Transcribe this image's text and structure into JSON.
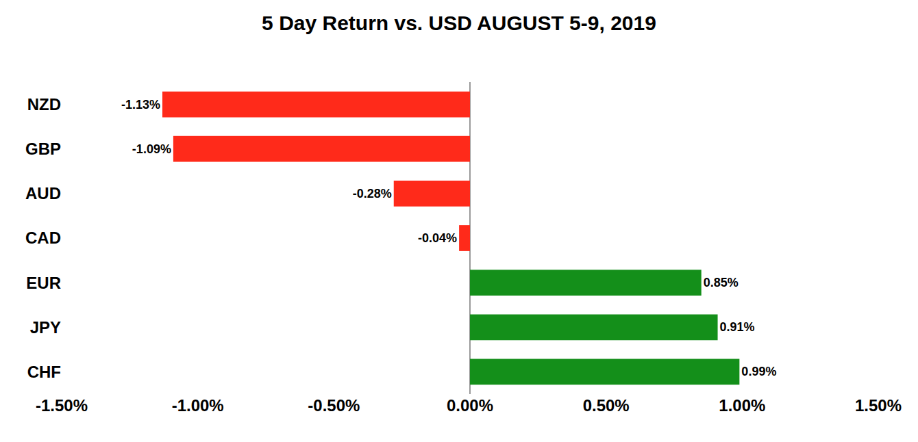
{
  "chart_data": {
    "type": "bar",
    "title": "5 Day Return vs. USD AUGUST 5-9, 2019",
    "orientation": "horizontal",
    "categories": [
      "NZD",
      "GBP",
      "AUD",
      "CAD",
      "EUR",
      "JPY",
      "CHF"
    ],
    "values": [
      -1.13,
      -1.09,
      -0.28,
      -0.04,
      0.85,
      0.91,
      0.99
    ],
    "value_labels": [
      "-1.13%",
      "-1.09%",
      "-0.28%",
      "-0.04%",
      "0.85%",
      "0.91%",
      "0.99%"
    ],
    "colors": [
      "#ff2a1a",
      "#ff2a1a",
      "#ff2a1a",
      "#ff2a1a",
      "#148f1a",
      "#148f1a",
      "#148f1a"
    ],
    "xlim": [
      -1.5,
      1.5
    ],
    "xticks": [
      {
        "value": -1.5,
        "label": "-1.50%"
      },
      {
        "value": -1.0,
        "label": "-1.00%"
      },
      {
        "value": -0.5,
        "label": "-0.50%"
      },
      {
        "value": 0,
        "label": "0.00%"
      },
      {
        "value": 0.5,
        "label": "0.50%"
      },
      {
        "value": 1.0,
        "label": "1.00%"
      },
      {
        "value": 1.5,
        "label": "1.50%"
      }
    ],
    "grid": false,
    "data_labels": true
  }
}
